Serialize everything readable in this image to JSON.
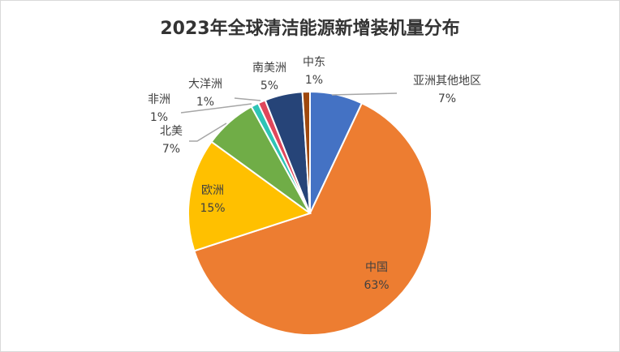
{
  "chart_data": {
    "type": "pie",
    "title": "2023年全球清洁能源新增装机量分布",
    "start": "top",
    "direction": "clockwise",
    "slices": [
      {
        "label": "亚洲其他地区",
        "value": 7,
        "value_label": "7%",
        "color": "#4472C4"
      },
      {
        "label": "中国",
        "value": 63,
        "value_label": "63%",
        "color": "#ED7D31"
      },
      {
        "label": "欧洲",
        "value": 15,
        "value_label": "15%",
        "color": "#FFC000"
      },
      {
        "label": "北美",
        "value": 7,
        "value_label": "7%",
        "color": "#70AD47"
      },
      {
        "label": "非洲",
        "value": 1,
        "value_label": "1%",
        "color": "#2EC4B6"
      },
      {
        "label": "大洋洲",
        "value": 1,
        "value_label": "1%",
        "color": "#E0475B"
      },
      {
        "label": "南美洲",
        "value": 5,
        "value_label": "5%",
        "color": "#264478"
      },
      {
        "label": "中东",
        "value": 1,
        "value_label": "1%",
        "color": "#9E480E"
      }
    ],
    "legend": "none"
  }
}
